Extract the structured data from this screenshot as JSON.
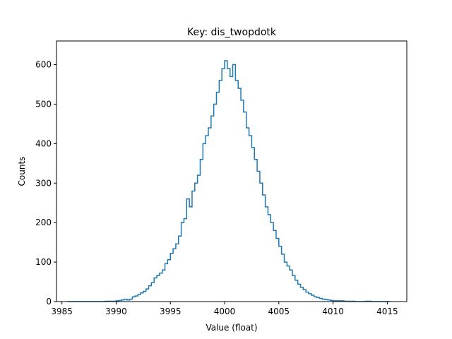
{
  "chart_data": {
    "type": "histogram",
    "title": "Key: dis_twopdotk",
    "xlabel": "Value (float)",
    "ylabel": "Counts",
    "xlim": [
      3984.5,
      4016.8
    ],
    "ylim": [
      0,
      660
    ],
    "xticks": [
      3985,
      3990,
      3995,
      4000,
      4005,
      4010,
      4015
    ],
    "yticks": [
      0,
      100,
      200,
      300,
      400,
      500,
      600
    ],
    "grid": false,
    "legend": "none",
    "color": "#1f77b4",
    "bins": [
      [
        3985.5,
        0
      ],
      [
        3986.0,
        0
      ],
      [
        3986.5,
        0
      ],
      [
        3987.0,
        0
      ],
      [
        3987.5,
        0
      ],
      [
        3988.0,
        0
      ],
      [
        3988.5,
        0
      ],
      [
        3989.0,
        1
      ],
      [
        3989.5,
        1
      ],
      [
        3990.0,
        2
      ],
      [
        3990.25,
        3
      ],
      [
        3990.5,
        4
      ],
      [
        3990.75,
        6
      ],
      [
        3991.0,
        4
      ],
      [
        3991.25,
        6
      ],
      [
        3991.5,
        12
      ],
      [
        3991.75,
        14
      ],
      [
        3992.0,
        18
      ],
      [
        3992.25,
        22
      ],
      [
        3992.5,
        26
      ],
      [
        3992.75,
        32
      ],
      [
        3993.0,
        40
      ],
      [
        3993.25,
        48
      ],
      [
        3993.5,
        60
      ],
      [
        3993.75,
        66
      ],
      [
        3994.0,
        72
      ],
      [
        3994.25,
        80
      ],
      [
        3994.5,
        96
      ],
      [
        3994.75,
        106
      ],
      [
        3995.0,
        122
      ],
      [
        3995.25,
        134
      ],
      [
        3995.5,
        146
      ],
      [
        3995.75,
        166
      ],
      [
        3996.0,
        200
      ],
      [
        3996.25,
        210
      ],
      [
        3996.5,
        260
      ],
      [
        3996.75,
        240
      ],
      [
        3997.0,
        280
      ],
      [
        3997.25,
        300
      ],
      [
        3997.5,
        320
      ],
      [
        3997.75,
        360
      ],
      [
        3998.0,
        400
      ],
      [
        3998.25,
        420
      ],
      [
        3998.5,
        440
      ],
      [
        3998.75,
        470
      ],
      [
        3999.0,
        500
      ],
      [
        3999.25,
        530
      ],
      [
        3999.5,
        560
      ],
      [
        3999.75,
        590
      ],
      [
        4000.0,
        610
      ],
      [
        4000.25,
        590
      ],
      [
        4000.5,
        570
      ],
      [
        4000.75,
        600
      ],
      [
        4001.0,
        560
      ],
      [
        4001.25,
        540
      ],
      [
        4001.5,
        510
      ],
      [
        4001.75,
        480
      ],
      [
        4002.0,
        440
      ],
      [
        4002.25,
        420
      ],
      [
        4002.5,
        390
      ],
      [
        4002.75,
        360
      ],
      [
        4003.0,
        330
      ],
      [
        4003.25,
        300
      ],
      [
        4003.5,
        270
      ],
      [
        4003.75,
        240
      ],
      [
        4004.0,
        220
      ],
      [
        4004.25,
        200
      ],
      [
        4004.5,
        180
      ],
      [
        4004.75,
        160
      ],
      [
        4005.0,
        140
      ],
      [
        4005.25,
        120
      ],
      [
        4005.5,
        100
      ],
      [
        4005.75,
        90
      ],
      [
        4006.0,
        80
      ],
      [
        4006.25,
        66
      ],
      [
        4006.5,
        54
      ],
      [
        4006.75,
        44
      ],
      [
        4007.0,
        36
      ],
      [
        4007.25,
        30
      ],
      [
        4007.5,
        24
      ],
      [
        4007.75,
        20
      ],
      [
        4008.0,
        16
      ],
      [
        4008.25,
        12
      ],
      [
        4008.5,
        10
      ],
      [
        4008.75,
        8
      ],
      [
        4009.0,
        6
      ],
      [
        4009.25,
        5
      ],
      [
        4009.5,
        4
      ],
      [
        4009.75,
        3
      ],
      [
        4010.0,
        2
      ],
      [
        4010.5,
        2
      ],
      [
        4011.0,
        1
      ],
      [
        4011.5,
        1
      ],
      [
        4012.0,
        0
      ],
      [
        4012.5,
        0
      ],
      [
        4013.0,
        1
      ],
      [
        4013.5,
        0
      ],
      [
        4014.0,
        0
      ],
      [
        4014.5,
        0
      ],
      [
        4015.0,
        0
      ],
      [
        4015.25,
        0
      ]
    ]
  }
}
